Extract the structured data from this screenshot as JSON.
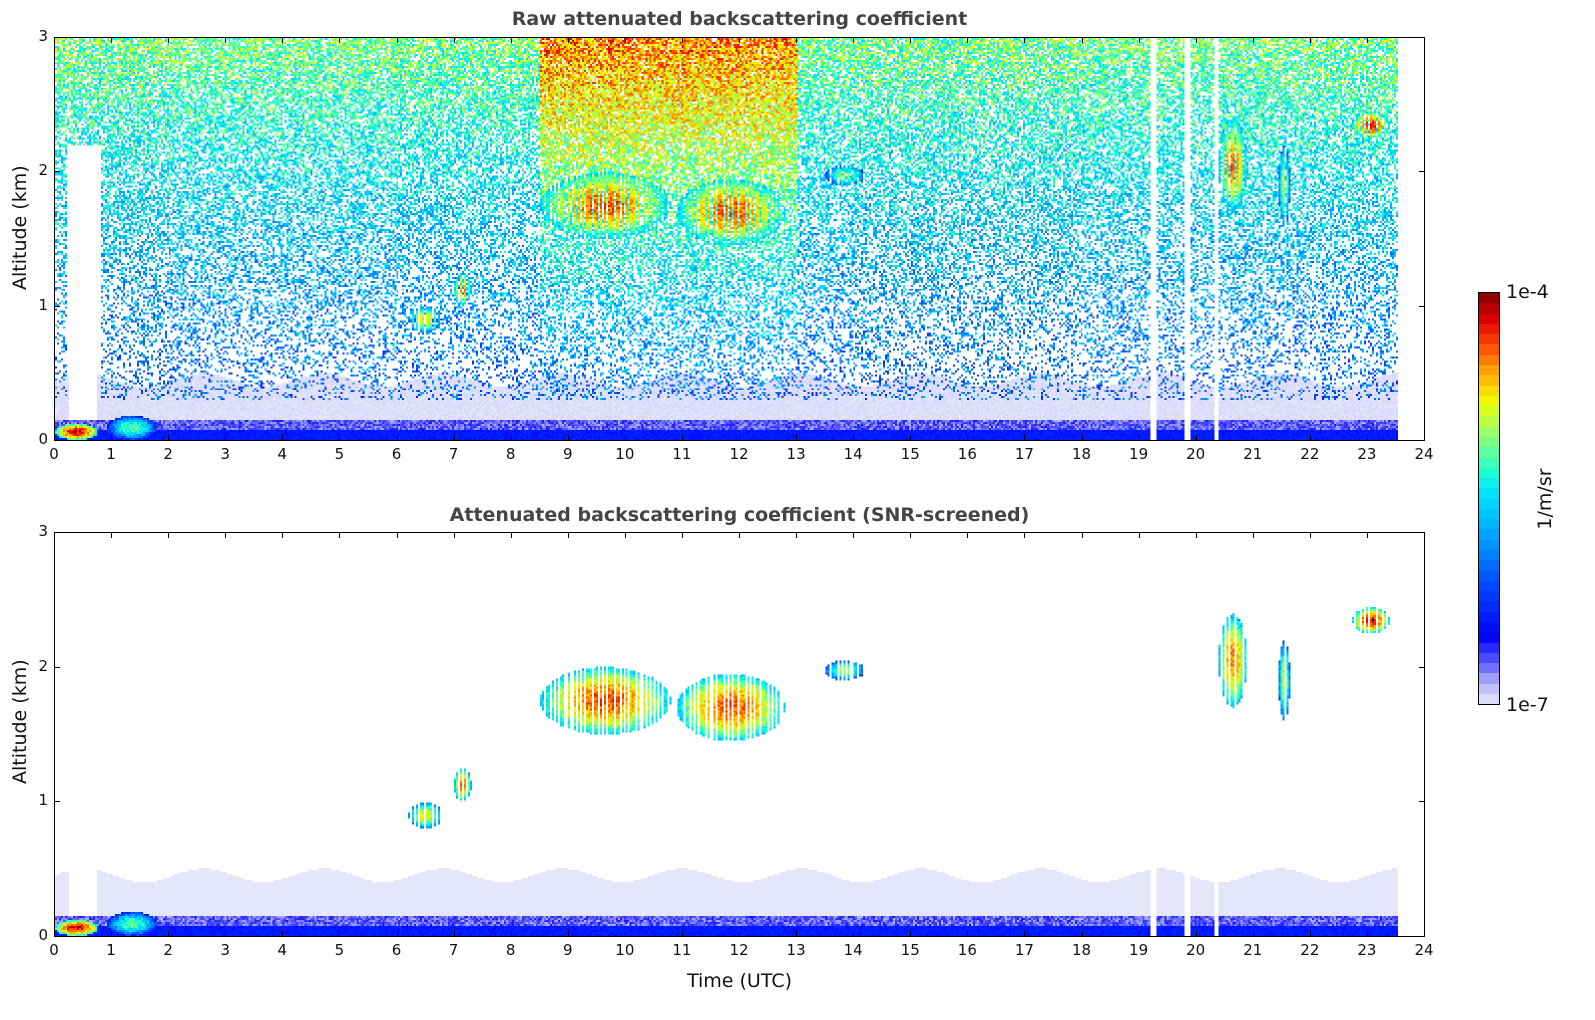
{
  "chart_data": {
    "type": "heatmap",
    "panels": [
      {
        "id": "raw",
        "title": "Raw attenuated backscattering coefficient",
        "ylabel": "Altitude (km)",
        "xlabel": "",
        "screened": false
      },
      {
        "id": "snr",
        "title": "Attenuated backscattering coefficient (SNR-screened)",
        "ylabel": "Altitude (km)",
        "xlabel": "Time (UTC)",
        "screened": true
      }
    ],
    "xlim": [
      0,
      24
    ],
    "ylim": [
      0,
      3
    ],
    "xticks": [
      "0",
      "1",
      "2",
      "3",
      "4",
      "5",
      "6",
      "7",
      "8",
      "9",
      "10",
      "11",
      "12",
      "13",
      "14",
      "15",
      "16",
      "17",
      "18",
      "19",
      "20",
      "21",
      "22",
      "23",
      "24"
    ],
    "yticks": [
      "0",
      "1",
      "2",
      "3"
    ],
    "colorbar": {
      "label": "1/m/sr",
      "min_label": "1e-7",
      "max_label": "1e-4",
      "log10_range": [
        -7,
        -4
      ],
      "colormap_stops": [
        [
          -7.0,
          "#e6e6fa"
        ],
        [
          -6.85,
          "#b4b4ff"
        ],
        [
          -6.7,
          "#5a5aff"
        ],
        [
          -6.5,
          "#0000ff"
        ],
        [
          -6.1,
          "#0050ff"
        ],
        [
          -5.7,
          "#00b4ff"
        ],
        [
          -5.45,
          "#00e6ff"
        ],
        [
          -5.3,
          "#20ffd0"
        ],
        [
          -5.0,
          "#a0ff60"
        ],
        [
          -4.8,
          "#f0ff00"
        ],
        [
          -4.6,
          "#ffb000"
        ],
        [
          -4.4,
          "#ff5000"
        ],
        [
          -4.2,
          "#e00000"
        ],
        [
          -4.0,
          "#800000"
        ]
      ]
    },
    "data_end_time": 23.55,
    "data_gaps_hours": [
      [
        19.22,
        19.3
      ],
      [
        19.8,
        19.9
      ],
      [
        20.33,
        20.4
      ]
    ],
    "boundary_layer_top_km": 0.45,
    "surface_band_km": 0.08,
    "cloud_features": [
      {
        "t": [
          0.0,
          0.75
        ],
        "alt": [
          0.0,
          0.12
        ],
        "log10_beta": -4.0
      },
      {
        "t": [
          0.9,
          1.8
        ],
        "alt": [
          0.0,
          0.18
        ],
        "log10_beta": -5.0
      },
      {
        "t": [
          6.2,
          6.8
        ],
        "alt": [
          0.8,
          1.0
        ],
        "log10_beta": -4.6
      },
      {
        "t": [
          7.0,
          7.3
        ],
        "alt": [
          1.0,
          1.25
        ],
        "log10_beta": -4.3
      },
      {
        "t": [
          8.5,
          10.8
        ],
        "alt": [
          1.5,
          2.0
        ],
        "log10_beta": -4.2
      },
      {
        "t": [
          10.9,
          12.8
        ],
        "alt": [
          1.45,
          1.95
        ],
        "log10_beta": -4.2
      },
      {
        "t": [
          13.5,
          14.2
        ],
        "alt": [
          1.9,
          2.05
        ],
        "log10_beta": -4.8
      },
      {
        "t": [
          20.4,
          20.9
        ],
        "alt": [
          1.7,
          2.4
        ],
        "log10_beta": -4.3
      },
      {
        "t": [
          21.45,
          21.65
        ],
        "alt": [
          1.6,
          2.2
        ],
        "log10_beta": -4.7
      },
      {
        "t": [
          22.75,
          23.4
        ],
        "alt": [
          2.25,
          2.45
        ],
        "log10_beta": -4.1
      }
    ]
  }
}
